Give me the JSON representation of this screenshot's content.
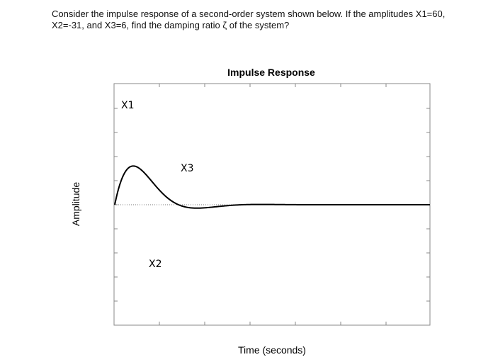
{
  "question": {
    "text": "Consider the impulse response of a second-order system shown below. If the amplitudes X1=60, X2=-31, and X3=6, find the damping ratio ζ of the system?"
  },
  "chart_data": {
    "type": "line",
    "title": "Impulse Response",
    "xlabel": "Time (seconds)",
    "ylabel": "Amplitude",
    "grid": false,
    "series": [
      {
        "values_description_free": true,
        "peaks": [
          {
            "label": "X1",
            "value": 60
          },
          {
            "label": "X2",
            "value": -31
          },
          {
            "label": "X3",
            "value": 6
          }
        ]
      }
    ],
    "annotations": [
      "X1",
      "X2",
      "X3"
    ],
    "line_color": "#000000",
    "baseline_style": "dotted"
  }
}
